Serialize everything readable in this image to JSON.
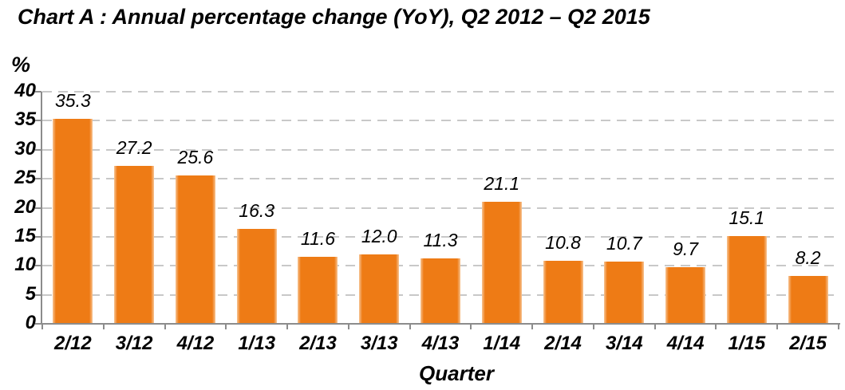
{
  "chart": {
    "title": "Chart A :  Annual percentage change (YoY), Q2 2012 – Q2 2015",
    "y_unit": "%",
    "x_axis_label": "Quarter"
  },
  "chart_data": {
    "type": "bar",
    "title": "Chart A : Annual percentage change (YoY), Q2 2012 – Q2 2015",
    "categories": [
      "2/12",
      "3/12",
      "4/12",
      "1/13",
      "2/13",
      "3/13",
      "4/13",
      "1/14",
      "2/14",
      "3/14",
      "4/14",
      "1/15",
      "2/15"
    ],
    "values": [
      35.3,
      27.2,
      25.6,
      16.3,
      11.6,
      12.0,
      11.3,
      21.1,
      10.8,
      10.7,
      9.7,
      15.1,
      8.2
    ],
    "data_labels": [
      "35.3",
      "27.2",
      "25.6",
      "16.3",
      "11.6",
      "12.0",
      "11.3",
      "21.1",
      "10.8",
      "10.7",
      "9.7",
      "15.1",
      "8.2"
    ],
    "xlabel": "Quarter",
    "ylabel": "%",
    "ylim": [
      0,
      40
    ],
    "yticks": [
      0,
      5,
      10,
      15,
      20,
      25,
      30,
      35,
      40
    ],
    "grid": "horizontal-dashed",
    "legend": "none",
    "colors": {
      "bar": "#EE7B15",
      "bar_edge": "#F7C493",
      "axis": "#8C8C8C",
      "gridline": "#C8C8C8",
      "text": "#000000"
    }
  }
}
